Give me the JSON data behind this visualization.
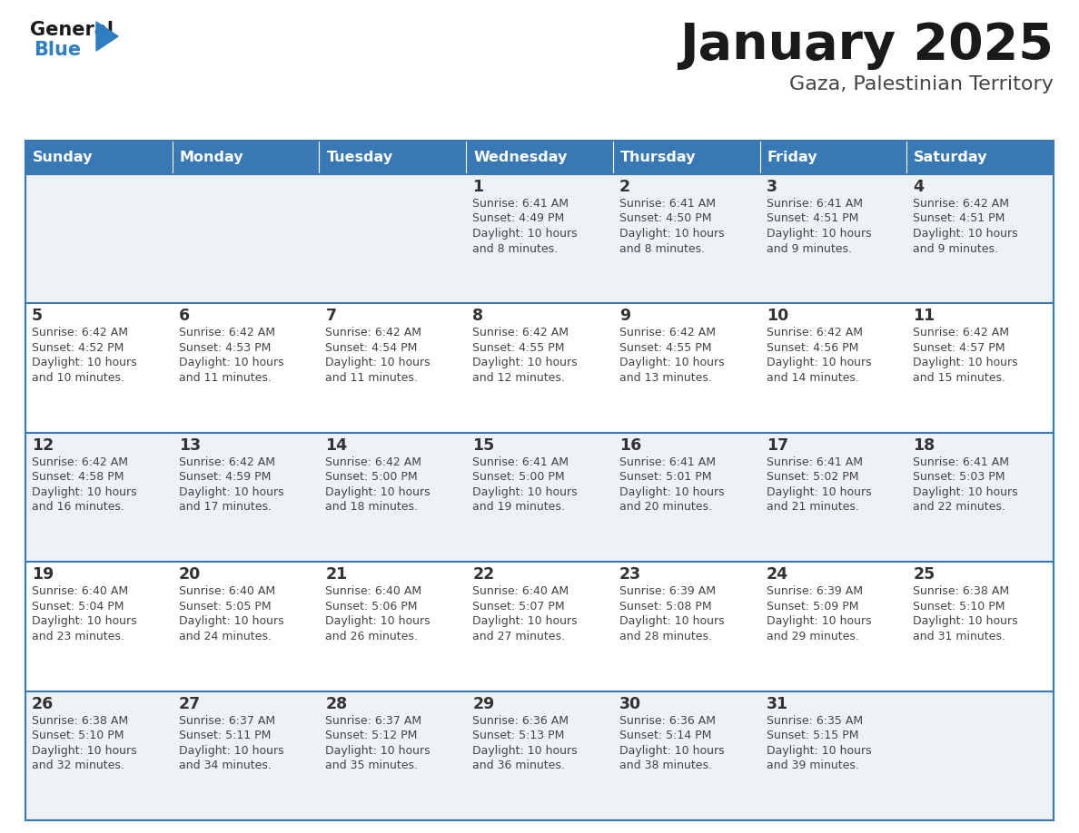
{
  "title": "January 2025",
  "subtitle": "Gaza, Palestinian Territory",
  "days_of_week": [
    "Sunday",
    "Monday",
    "Tuesday",
    "Wednesday",
    "Thursday",
    "Friday",
    "Saturday"
  ],
  "header_bg": "#3878b4",
  "header_text": "#ffffff",
  "row_bg_odd": "#eef2f7",
  "row_bg_even": "#ffffff",
  "border_color": "#3878b4",
  "day_num_color": "#333333",
  "cell_text_color": "#444444",
  "title_color": "#1a1a1a",
  "subtitle_color": "#444444",
  "logo_general_color": "#1a1a1a",
  "logo_blue_color": "#2e7ec1",
  "calendar_data": [
    {
      "day": 1,
      "col": 3,
      "row": 0,
      "sunrise": "6:41 AM",
      "sunset": "4:49 PM",
      "daylight_min": "8 minutes."
    },
    {
      "day": 2,
      "col": 4,
      "row": 0,
      "sunrise": "6:41 AM",
      "sunset": "4:50 PM",
      "daylight_min": "8 minutes."
    },
    {
      "day": 3,
      "col": 5,
      "row": 0,
      "sunrise": "6:41 AM",
      "sunset": "4:51 PM",
      "daylight_min": "9 minutes."
    },
    {
      "day": 4,
      "col": 6,
      "row": 0,
      "sunrise": "6:42 AM",
      "sunset": "4:51 PM",
      "daylight_min": "9 minutes."
    },
    {
      "day": 5,
      "col": 0,
      "row": 1,
      "sunrise": "6:42 AM",
      "sunset": "4:52 PM",
      "daylight_min": "10 minutes."
    },
    {
      "day": 6,
      "col": 1,
      "row": 1,
      "sunrise": "6:42 AM",
      "sunset": "4:53 PM",
      "daylight_min": "11 minutes."
    },
    {
      "day": 7,
      "col": 2,
      "row": 1,
      "sunrise": "6:42 AM",
      "sunset": "4:54 PM",
      "daylight_min": "11 minutes."
    },
    {
      "day": 8,
      "col": 3,
      "row": 1,
      "sunrise": "6:42 AM",
      "sunset": "4:55 PM",
      "daylight_min": "12 minutes."
    },
    {
      "day": 9,
      "col": 4,
      "row": 1,
      "sunrise": "6:42 AM",
      "sunset": "4:55 PM",
      "daylight_min": "13 minutes."
    },
    {
      "day": 10,
      "col": 5,
      "row": 1,
      "sunrise": "6:42 AM",
      "sunset": "4:56 PM",
      "daylight_min": "14 minutes."
    },
    {
      "day": 11,
      "col": 6,
      "row": 1,
      "sunrise": "6:42 AM",
      "sunset": "4:57 PM",
      "daylight_min": "15 minutes."
    },
    {
      "day": 12,
      "col": 0,
      "row": 2,
      "sunrise": "6:42 AM",
      "sunset": "4:58 PM",
      "daylight_min": "16 minutes."
    },
    {
      "day": 13,
      "col": 1,
      "row": 2,
      "sunrise": "6:42 AM",
      "sunset": "4:59 PM",
      "daylight_min": "17 minutes."
    },
    {
      "day": 14,
      "col": 2,
      "row": 2,
      "sunrise": "6:42 AM",
      "sunset": "5:00 PM",
      "daylight_min": "18 minutes."
    },
    {
      "day": 15,
      "col": 3,
      "row": 2,
      "sunrise": "6:41 AM",
      "sunset": "5:00 PM",
      "daylight_min": "19 minutes."
    },
    {
      "day": 16,
      "col": 4,
      "row": 2,
      "sunrise": "6:41 AM",
      "sunset": "5:01 PM",
      "daylight_min": "20 minutes."
    },
    {
      "day": 17,
      "col": 5,
      "row": 2,
      "sunrise": "6:41 AM",
      "sunset": "5:02 PM",
      "daylight_min": "21 minutes."
    },
    {
      "day": 18,
      "col": 6,
      "row": 2,
      "sunrise": "6:41 AM",
      "sunset": "5:03 PM",
      "daylight_min": "22 minutes."
    },
    {
      "day": 19,
      "col": 0,
      "row": 3,
      "sunrise": "6:40 AM",
      "sunset": "5:04 PM",
      "daylight_min": "23 minutes."
    },
    {
      "day": 20,
      "col": 1,
      "row": 3,
      "sunrise": "6:40 AM",
      "sunset": "5:05 PM",
      "daylight_min": "24 minutes."
    },
    {
      "day": 21,
      "col": 2,
      "row": 3,
      "sunrise": "6:40 AM",
      "sunset": "5:06 PM",
      "daylight_min": "26 minutes."
    },
    {
      "day": 22,
      "col": 3,
      "row": 3,
      "sunrise": "6:40 AM",
      "sunset": "5:07 PM",
      "daylight_min": "27 minutes."
    },
    {
      "day": 23,
      "col": 4,
      "row": 3,
      "sunrise": "6:39 AM",
      "sunset": "5:08 PM",
      "daylight_min": "28 minutes."
    },
    {
      "day": 24,
      "col": 5,
      "row": 3,
      "sunrise": "6:39 AM",
      "sunset": "5:09 PM",
      "daylight_min": "29 minutes."
    },
    {
      "day": 25,
      "col": 6,
      "row": 3,
      "sunrise": "6:38 AM",
      "sunset": "5:10 PM",
      "daylight_min": "31 minutes."
    },
    {
      "day": 26,
      "col": 0,
      "row": 4,
      "sunrise": "6:38 AM",
      "sunset": "5:10 PM",
      "daylight_min": "32 minutes."
    },
    {
      "day": 27,
      "col": 1,
      "row": 4,
      "sunrise": "6:37 AM",
      "sunset": "5:11 PM",
      "daylight_min": "34 minutes."
    },
    {
      "day": 28,
      "col": 2,
      "row": 4,
      "sunrise": "6:37 AM",
      "sunset": "5:12 PM",
      "daylight_min": "35 minutes."
    },
    {
      "day": 29,
      "col": 3,
      "row": 4,
      "sunrise": "6:36 AM",
      "sunset": "5:13 PM",
      "daylight_min": "36 minutes."
    },
    {
      "day": 30,
      "col": 4,
      "row": 4,
      "sunrise": "6:36 AM",
      "sunset": "5:14 PM",
      "daylight_min": "38 minutes."
    },
    {
      "day": 31,
      "col": 5,
      "row": 4,
      "sunrise": "6:35 AM",
      "sunset": "5:15 PM",
      "daylight_min": "39 minutes."
    }
  ]
}
